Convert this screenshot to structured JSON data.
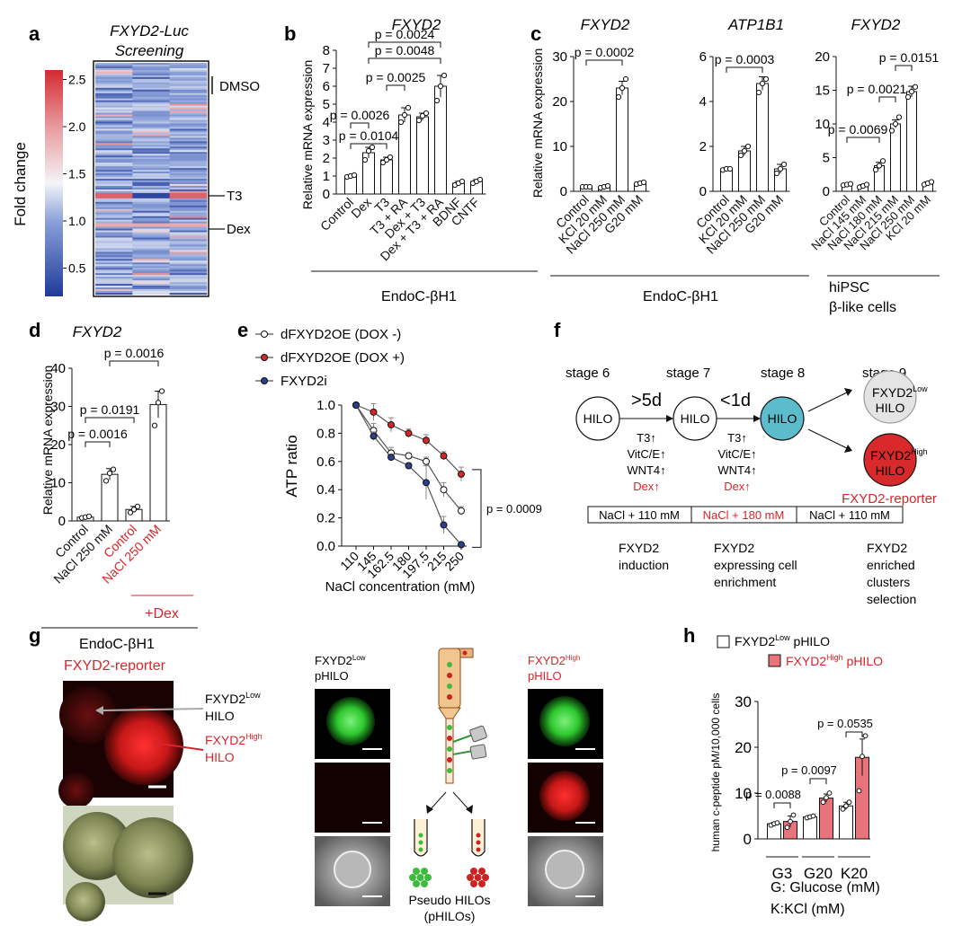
{
  "panel_letters": [
    "a",
    "b",
    "c",
    "d",
    "e",
    "f",
    "g",
    "h"
  ],
  "colors": {
    "bar_white": "#ffffff",
    "bar_red": "#e8737a",
    "red_text": "#d8252a",
    "line_open": "#ffffff",
    "line_red": "#d8252a",
    "line_blue": "#2b3f8f",
    "cyan_hilo": "#5bbccc",
    "low_hilo": "#e4e4e4",
    "high_hilo": "#d82a2a",
    "green_fluor": "#3cd23c",
    "red_fluor": "#d81e1e"
  },
  "chart_data": [
    {
      "panel": "a",
      "type": "heatmap",
      "title": "FXYD2-Luc Screening",
      "colorbar_label": "Fold change",
      "colorbar_range": [
        0.2,
        2.6
      ],
      "colorbar_ticks": [
        "2.5",
        "2.0",
        "1.5",
        "1.0",
        "0.5"
      ],
      "annotations": [
        "DMSO",
        "T3",
        "Dex"
      ]
    },
    {
      "panel": "b",
      "type": "bar",
      "title": "FXYD2",
      "ylabel": "Relative mRNA expression",
      "ylim": [
        0,
        8
      ],
      "yticks": [
        "0",
        "1",
        "2",
        "3",
        "4",
        "5",
        "6",
        "7",
        "8"
      ],
      "categories": [
        "Control",
        "Dex",
        "T3",
        "T3 + RA",
        "Dex + T3",
        "Dex + T3 + RA",
        "BDNF",
        "CNTF"
      ],
      "values": [
        1.0,
        2.3,
        1.9,
        4.4,
        4.3,
        6.0,
        0.6,
        0.7
      ],
      "errors": [
        0.05,
        0.3,
        0.15,
        0.4,
        0.2,
        0.6,
        0.1,
        0.1
      ],
      "points": [
        [
          0.95,
          1.0,
          1.05
        ],
        [
          1.9,
          2.4,
          2.6
        ],
        [
          1.75,
          1.9,
          2.05
        ],
        [
          4.0,
          4.4,
          4.8
        ],
        [
          4.1,
          4.35,
          4.5
        ],
        [
          5.2,
          6.0,
          6.6
        ],
        [
          0.5,
          0.6,
          0.7
        ],
        [
          0.6,
          0.7,
          0.8
        ]
      ],
      "comparisons": [
        "p = 0.0104",
        "p = 0.0026",
        "p = 0.0025",
        "p = 0.0048",
        "p = 0.0024"
      ],
      "group_label": "EndoC-βH1"
    },
    {
      "panel": "c1",
      "type": "bar",
      "title": "FXYD2",
      "ylabel": "Relative mRNA expression",
      "ylim": [
        0,
        30
      ],
      "yticks": [
        "0",
        "10",
        "20",
        "30"
      ],
      "categories": [
        "Control",
        "KCl 20 mM",
        "NaCl 250 mM",
        "G20 mM"
      ],
      "values": [
        1.0,
        1.0,
        23.0,
        1.8
      ],
      "errors": [
        0.1,
        0.2,
        1.5,
        0.2
      ],
      "points": [
        [
          1.0,
          1.0,
          1.0
        ],
        [
          0.8,
          1.0,
          1.2
        ],
        [
          21,
          23,
          25
        ],
        [
          1.6,
          1.8,
          2.0
        ]
      ],
      "comparisons": [
        "p = 0.0002"
      ]
    },
    {
      "panel": "c2",
      "type": "bar",
      "title": "ATP1B1",
      "ylim": [
        0,
        6
      ],
      "yticks": [
        "0",
        "2",
        "4",
        "6"
      ],
      "categories": [
        "Control",
        "KCl 20 mM",
        "NaCl 250 mM",
        "G20 mM"
      ],
      "values": [
        1.0,
        1.8,
        4.8,
        1.0
      ],
      "errors": [
        0.05,
        0.2,
        0.3,
        0.2
      ],
      "points": [
        [
          0.95,
          1.0,
          1.0
        ],
        [
          1.6,
          1.8,
          2.0
        ],
        [
          4.4,
          4.8,
          5.0
        ],
        [
          0.8,
          1.0,
          1.2
        ]
      ],
      "comparisons": [
        "p = 0.0003"
      ],
      "group_label": "EndoC-βH1"
    },
    {
      "panel": "c3",
      "type": "bar",
      "title": "FXYD2",
      "ylim": [
        0,
        20
      ],
      "yticks": [
        "0",
        "5",
        "10",
        "15",
        "20"
      ],
      "categories": [
        "Control",
        "NaCl 145 mM",
        "NaCl 180 mM",
        "NaCl 215 mM",
        "NaCl 250 mM",
        "KCl 20 mM"
      ],
      "values": [
        1.0,
        0.8,
        3.8,
        10.0,
        14.8,
        1.2
      ],
      "errors": [
        0.1,
        0.2,
        0.5,
        0.6,
        0.8,
        0.2
      ],
      "points": [
        [
          0.9,
          1.0,
          1.1
        ],
        [
          0.6,
          0.8,
          1.0
        ],
        [
          3.2,
          3.8,
          4.5
        ],
        [
          9.0,
          10.0,
          11.0
        ],
        [
          14.0,
          14.8,
          15.5
        ],
        [
          1.0,
          1.2,
          1.4
        ]
      ],
      "comparisons": [
        "p = 0.0069",
        "p = 0.0021",
        "p = 0.0151"
      ],
      "group_label": [
        "hiPSC",
        "β-like cells"
      ]
    },
    {
      "panel": "d",
      "type": "bar",
      "title": "FXYD2",
      "ylabel": "Relative mRNA expression",
      "ylim": [
        0,
        40
      ],
      "yticks": [
        "0",
        "10",
        "20",
        "30",
        "40"
      ],
      "categories": [
        "Control",
        "NaCl 250 mM",
        "Control",
        "NaCl 250 mM"
      ],
      "values": [
        1.0,
        12.2,
        3.0,
        30.5
      ],
      "errors": [
        0.2,
        1.5,
        0.8,
        3.5
      ],
      "points": [
        [
          0.8,
          1.0,
          1.2
        ],
        [
          10.5,
          12.5,
          13.5
        ],
        [
          2.2,
          3.0,
          3.8
        ],
        [
          25,
          31,
          34
        ]
      ],
      "comparisons": [
        "p = 0.0016",
        "p = 0.0191",
        "p = 0.0016"
      ],
      "treatment_label": "+Dex",
      "group_label": "EndoC-βH1"
    },
    {
      "panel": "e",
      "type": "line",
      "xlabel": "NaCl concentration (mM)",
      "ylabel": "ATP ratio",
      "ylim": [
        0,
        1.0
      ],
      "yticks": [
        "0.0",
        "0.2",
        "0.4",
        "0.6",
        "0.8",
        "1.0"
      ],
      "x": [
        "110",
        "145",
        "162.5",
        "180",
        "197.5",
        "215",
        "250"
      ],
      "series": [
        {
          "name": "dFXYD2OE (DOX -)",
          "values": [
            1.0,
            0.82,
            0.66,
            0.64,
            0.6,
            0.4,
            0.25
          ],
          "errors": [
            0.0,
            0.05,
            0.04,
            0.02,
            0.03,
            0.05,
            0.03
          ]
        },
        {
          "name": "dFXYD2OE (DOX +)",
          "values": [
            1.0,
            0.95,
            0.86,
            0.8,
            0.75,
            0.64,
            0.51
          ],
          "errors": [
            0.0,
            0.06,
            0.05,
            0.03,
            0.04,
            0.03,
            0.05
          ]
        },
        {
          "name": "FXYD2i",
          "values": [
            1.0,
            0.78,
            0.63,
            0.57,
            0.45,
            0.15,
            0.01
          ],
          "errors": [
            0.0,
            0.03,
            0.02,
            0.02,
            0.12,
            0.06,
            0.0
          ]
        }
      ],
      "comparisons": [
        "p = 0.0009"
      ]
    },
    {
      "panel": "h",
      "type": "bar",
      "ylabel": "human c-peptide pM/10,000 cells",
      "ylim": [
        0,
        30
      ],
      "yticks": [
        "0",
        "10",
        "20",
        "30"
      ],
      "categories": [
        "G3",
        "G20",
        "K20"
      ],
      "series": [
        {
          "name": "FXYD2Low pHILO",
          "values": [
            3.3,
            4.8,
            7.2
          ],
          "errors": [
            0.3,
            0.3,
            0.8
          ],
          "points": [
            [
              3.0,
              3.3,
              3.5
            ],
            [
              4.6,
              4.8,
              5.0
            ],
            [
              6.5,
              7.2,
              8.0
            ]
          ]
        },
        {
          "name": "FXYD2High pHILO",
          "values": [
            3.8,
            8.9,
            17.8
          ],
          "errors": [
            1.2,
            0.9,
            4.0
          ],
          "points": [
            [
              2.5,
              3.8,
              5.2
            ],
            [
              8.0,
              9.0,
              10.0
            ],
            [
              10.5,
              18,
              22.5
            ]
          ]
        }
      ],
      "comparisons": [
        "p = 0.0088",
        "p = 0.0097",
        "p = 0.0535"
      ],
      "footnotes": [
        "G: Glucose (mM)",
        "K:KCl (mM)"
      ]
    }
  ],
  "legend_h": {
    "low_pre": "FXYD2",
    "low_sup": "Low",
    "low_post": " pHILO",
    "high_pre": "FXYD2",
    "high_sup": "High",
    "high_post": " pHILO"
  },
  "panel_f": {
    "stages": [
      "stage 6",
      "stage 7",
      "stage 8",
      "stage 9"
    ],
    "hilo": "HILO",
    "arrow1": ">5d",
    "arrow2": "<1d",
    "factors1": [
      "T3↑",
      "VitC/E↑",
      "WNT4↑",
      "Dex↑"
    ],
    "factors2": [
      "T3↑",
      "VitC/E↑",
      "WNT4↑",
      "Dex↑"
    ],
    "low_pre": "FXYD2",
    "low_sup": "Low",
    "high_pre": "FXYD2",
    "high_sup": "High",
    "reporter": "FXYD2-reporter",
    "bars": [
      "NaCl + 110 mM",
      "NaCl + 180 mM",
      "NaCl + 110 mM"
    ],
    "captions": [
      [
        "FXYD2",
        "induction"
      ],
      [
        "FXYD2",
        "expressing cell",
        "enrichment"
      ],
      [
        "FXYD2",
        "enriched",
        "clusters",
        "selection"
      ]
    ]
  },
  "panel_g": {
    "reporter_title": "FXYD2-reporter",
    "low_pre": "FXYD2",
    "low_sup": "Low",
    "low_post": "HILO",
    "high_pre": "FXYD2",
    "high_sup": "High",
    "high_post": "HILO",
    "col_low_pre": "FXYD2",
    "col_low_sup": "Low",
    "col_low_post": "pHILO",
    "col_high_pre": "FXYD2",
    "col_high_sup": "High",
    "col_high_post": "pHILO",
    "sort_caption": [
      "Pseudo HILOs",
      "(pHILOs)"
    ]
  }
}
